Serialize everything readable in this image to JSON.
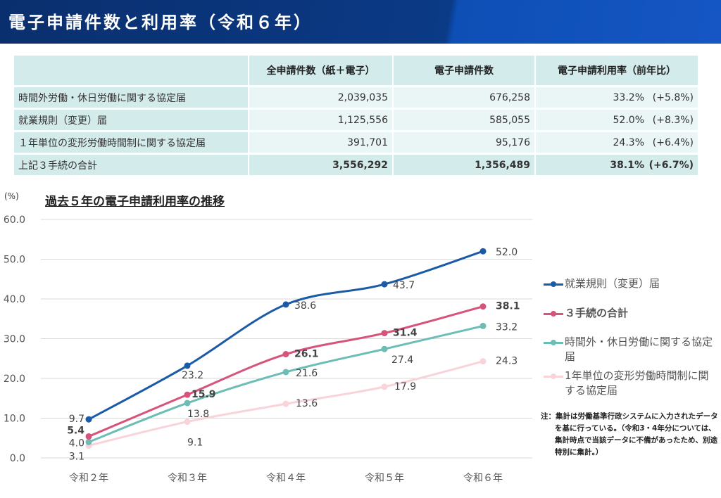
{
  "title": "電子申請件数と利用率（令和６年）",
  "table": {
    "headers": [
      "",
      "全申請件数（紙＋電子）",
      "電子申請件数",
      "電子申請利用率（前年比）"
    ],
    "rows": [
      {
        "label": "時間外労働・休日労働に関する協定届",
        "total": "2,039,035",
        "electronic": "676,258",
        "rate": "33.2%",
        "change": "(+5.8%)"
      },
      {
        "label": "就業規則（変更）届",
        "total": "1,125,556",
        "electronic": "585,055",
        "rate": "52.0%",
        "change": "(+8.3%)"
      },
      {
        "label": "１年単位の変形労働時間制に関する協定届",
        "total": "391,701",
        "electronic": "95,176",
        "rate": "24.3%",
        "change": "(+6.4%)"
      },
      {
        "label": "上記３手続の合計",
        "total": "3,556,292",
        "electronic": "1,356,489",
        "rate": "38.1%",
        "change": "(+6.7%)"
      }
    ]
  },
  "chart_data": {
    "type": "line",
    "title": "過去５年の電子申請利用率の推移",
    "ylabel": "(%)",
    "ylim": [
      0,
      60
    ],
    "yticks": [
      "0.0",
      "10.0",
      "20.0",
      "30.0",
      "40.0",
      "50.0",
      "60.0"
    ],
    "categories": [
      "令和２年",
      "令和３年",
      "令和４年",
      "令和５年",
      "令和６年"
    ],
    "grid": true,
    "legend_position": "right",
    "series": [
      {
        "name": "就業規則（変更）届",
        "color": "#1a5aa6",
        "values": [
          9.7,
          23.2,
          38.6,
          43.7,
          52.0
        ],
        "labels": [
          "9.7",
          "23.2",
          "38.6",
          "43.7",
          "52.0"
        ],
        "bold": false
      },
      {
        "name": "３手続の合計",
        "color": "#d6537a",
        "values": [
          5.4,
          15.9,
          26.1,
          31.4,
          38.1
        ],
        "labels": [
          "5.4",
          "15.9",
          "26.1",
          "31.4",
          "38.1"
        ],
        "bold": true
      },
      {
        "name": "時間外・休日労働に関する協定届",
        "color": "#6bbdb5",
        "values": [
          4.0,
          13.8,
          21.6,
          27.4,
          33.2
        ],
        "labels": [
          "4.0",
          "13.8",
          "21.6",
          "27.4",
          "33.2"
        ],
        "bold": false
      },
      {
        "name": "1年単位の変形労働時間制に関する協定届",
        "color": "#f8d3da",
        "values": [
          3.1,
          9.1,
          13.6,
          17.9,
          24.3
        ],
        "labels": [
          "3.1",
          "9.1",
          "13.6",
          "17.9",
          "24.3"
        ],
        "bold": false
      }
    ]
  },
  "note": "注：集計は労働基準行政システムに入力されたデータを基に行っている。（令和3・4年分については、集計時点で当該データに不備があったため、別途特別に集計。）"
}
